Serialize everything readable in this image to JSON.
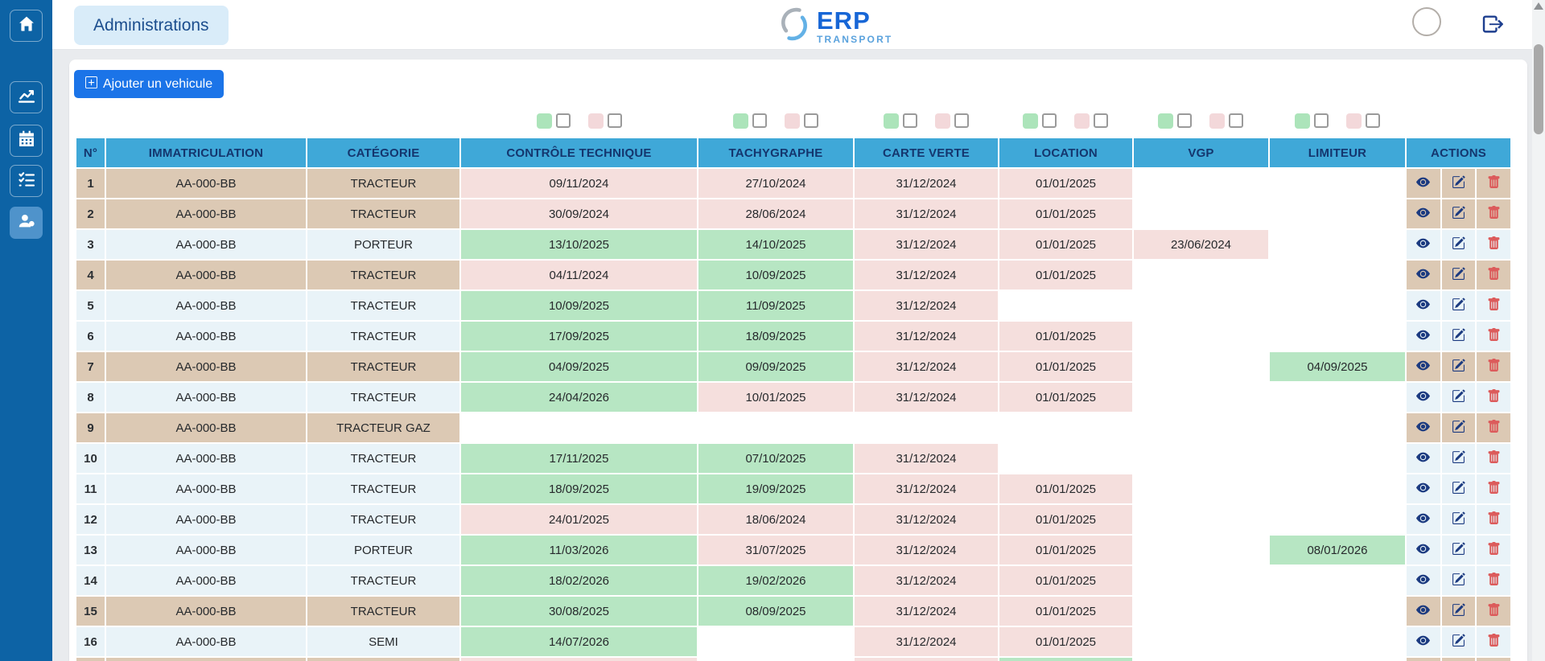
{
  "header": {
    "nav": "Administrations",
    "logo_main": "ERP",
    "logo_sub": "TRANSPORT"
  },
  "toolbar": {
    "add_vehicle_label": "Ajouter un vehicule"
  },
  "sidebar": {
    "items": [
      {
        "icon": "home-icon",
        "active": false
      },
      {
        "icon": "chart-line-icon",
        "active": false
      },
      {
        "icon": "calendar-icon",
        "active": false
      },
      {
        "icon": "checklist-icon",
        "active": false
      },
      {
        "icon": "users-icon",
        "active": true
      }
    ]
  },
  "legend": {
    "columns": [
      "CONTRÔLE TECHNIQUE",
      "TACHYGRAPHE",
      "CARTE VERTE",
      "LOCATION",
      "VGP",
      "LIMITEUR"
    ],
    "valid_color": "#ace4ba",
    "expired_color": "#f3d8da"
  },
  "colors": {
    "sidebar": "#0d63a5",
    "table_header": "#3fa8d8",
    "cell_ok": "#b7e6c3",
    "cell_expired": "#f5dfdd",
    "stripe_beige": "#dcc9b4",
    "stripe_blue": "#e9f3f8",
    "action_navy": "#1b3a80",
    "action_red": "#dc5b5b",
    "add_button_blue": "#1b74e8"
  },
  "table": {
    "headers": [
      "N°",
      "IMMATRICULATION",
      "CATÉGORIE",
      "CONTRÔLE TECHNIQUE",
      "TACHYGRAPHE",
      "CARTE VERTE",
      "LOCATION",
      "VGP",
      "LIMITEUR",
      "ACTIONS"
    ],
    "actions": [
      "view",
      "edit",
      "delete"
    ],
    "rows": [
      {
        "n": "1",
        "immatriculation": "AA-000-BB",
        "categorie": "TRACTEUR",
        "stripe": "beige",
        "ct": {
          "value": "09/11/2024",
          "status": "expired"
        },
        "tachy": {
          "value": "27/10/2024",
          "status": "expired"
        },
        "cv": {
          "value": "31/12/2024",
          "status": "expired"
        },
        "loc": {
          "value": "01/01/2025",
          "status": "expired"
        },
        "vgp": {
          "value": "",
          "status": "none"
        },
        "lim": {
          "value": "",
          "status": "none"
        }
      },
      {
        "n": "2",
        "immatriculation": "AA-000-BB",
        "categorie": "TRACTEUR",
        "stripe": "beige",
        "ct": {
          "value": "30/09/2024",
          "status": "expired"
        },
        "tachy": {
          "value": "28/06/2024",
          "status": "expired"
        },
        "cv": {
          "value": "31/12/2024",
          "status": "expired"
        },
        "loc": {
          "value": "01/01/2025",
          "status": "expired"
        },
        "vgp": {
          "value": "",
          "status": "none"
        },
        "lim": {
          "value": "",
          "status": "none"
        }
      },
      {
        "n": "3",
        "immatriculation": "AA-000-BB",
        "categorie": "PORTEUR",
        "stripe": "blue",
        "ct": {
          "value": "13/10/2025",
          "status": "ok"
        },
        "tachy": {
          "value": "14/10/2025",
          "status": "ok"
        },
        "cv": {
          "value": "31/12/2024",
          "status": "expired"
        },
        "loc": {
          "value": "01/01/2025",
          "status": "expired"
        },
        "vgp": {
          "value": "23/06/2024",
          "status": "expired"
        },
        "lim": {
          "value": "",
          "status": "none"
        }
      },
      {
        "n": "4",
        "immatriculation": "AA-000-BB",
        "categorie": "TRACTEUR",
        "stripe": "beige",
        "ct": {
          "value": "04/11/2024",
          "status": "expired"
        },
        "tachy": {
          "value": "10/09/2025",
          "status": "ok"
        },
        "cv": {
          "value": "31/12/2024",
          "status": "expired"
        },
        "loc": {
          "value": "01/01/2025",
          "status": "expired"
        },
        "vgp": {
          "value": "",
          "status": "none"
        },
        "lim": {
          "value": "",
          "status": "none"
        }
      },
      {
        "n": "5",
        "immatriculation": "AA-000-BB",
        "categorie": "TRACTEUR",
        "stripe": "blue",
        "ct": {
          "value": "10/09/2025",
          "status": "ok"
        },
        "tachy": {
          "value": "11/09/2025",
          "status": "ok"
        },
        "cv": {
          "value": "31/12/2024",
          "status": "expired"
        },
        "loc": {
          "value": "",
          "status": "none"
        },
        "vgp": {
          "value": "",
          "status": "none"
        },
        "lim": {
          "value": "",
          "status": "none"
        }
      },
      {
        "n": "6",
        "immatriculation": "AA-000-BB",
        "categorie": "TRACTEUR",
        "stripe": "blue",
        "ct": {
          "value": "17/09/2025",
          "status": "ok"
        },
        "tachy": {
          "value": "18/09/2025",
          "status": "ok"
        },
        "cv": {
          "value": "31/12/2024",
          "status": "expired"
        },
        "loc": {
          "value": "01/01/2025",
          "status": "expired"
        },
        "vgp": {
          "value": "",
          "status": "none"
        },
        "lim": {
          "value": "",
          "status": "none"
        }
      },
      {
        "n": "7",
        "immatriculation": "AA-000-BB",
        "categorie": "TRACTEUR",
        "stripe": "beige",
        "ct": {
          "value": "04/09/2025",
          "status": "ok"
        },
        "tachy": {
          "value": "09/09/2025",
          "status": "ok"
        },
        "cv": {
          "value": "31/12/2024",
          "status": "expired"
        },
        "loc": {
          "value": "01/01/2025",
          "status": "expired"
        },
        "vgp": {
          "value": "",
          "status": "none"
        },
        "lim": {
          "value": "04/09/2025",
          "status": "ok"
        }
      },
      {
        "n": "8",
        "immatriculation": "AA-000-BB",
        "categorie": "TRACTEUR",
        "stripe": "blue",
        "ct": {
          "value": "24/04/2026",
          "status": "ok"
        },
        "tachy": {
          "value": "10/01/2025",
          "status": "expired"
        },
        "cv": {
          "value": "31/12/2024",
          "status": "expired"
        },
        "loc": {
          "value": "01/01/2025",
          "status": "expired"
        },
        "vgp": {
          "value": "",
          "status": "none"
        },
        "lim": {
          "value": "",
          "status": "none"
        }
      },
      {
        "n": "9",
        "immatriculation": "AA-000-BB",
        "categorie": "TRACTEUR GAZ",
        "stripe": "beige",
        "ct": {
          "value": "",
          "status": "none"
        },
        "tachy": {
          "value": "",
          "status": "none"
        },
        "cv": {
          "value": "",
          "status": "none"
        },
        "loc": {
          "value": "",
          "status": "none"
        },
        "vgp": {
          "value": "",
          "status": "none"
        },
        "lim": {
          "value": "",
          "status": "none"
        }
      },
      {
        "n": "10",
        "immatriculation": "AA-000-BB",
        "categorie": "TRACTEUR",
        "stripe": "blue",
        "ct": {
          "value": "17/11/2025",
          "status": "ok"
        },
        "tachy": {
          "value": "07/10/2025",
          "status": "ok"
        },
        "cv": {
          "value": "31/12/2024",
          "status": "expired"
        },
        "loc": {
          "value": "",
          "status": "none"
        },
        "vgp": {
          "value": "",
          "status": "none"
        },
        "lim": {
          "value": "",
          "status": "none"
        }
      },
      {
        "n": "11",
        "immatriculation": "AA-000-BB",
        "categorie": "TRACTEUR",
        "stripe": "blue",
        "ct": {
          "value": "18/09/2025",
          "status": "ok"
        },
        "tachy": {
          "value": "19/09/2025",
          "status": "ok"
        },
        "cv": {
          "value": "31/12/2024",
          "status": "expired"
        },
        "loc": {
          "value": "01/01/2025",
          "status": "expired"
        },
        "vgp": {
          "value": "",
          "status": "none"
        },
        "lim": {
          "value": "",
          "status": "none"
        }
      },
      {
        "n": "12",
        "immatriculation": "AA-000-BB",
        "categorie": "TRACTEUR",
        "stripe": "blue",
        "ct": {
          "value": "24/01/2025",
          "status": "expired"
        },
        "tachy": {
          "value": "18/06/2024",
          "status": "expired"
        },
        "cv": {
          "value": "31/12/2024",
          "status": "expired"
        },
        "loc": {
          "value": "01/01/2025",
          "status": "expired"
        },
        "vgp": {
          "value": "",
          "status": "none"
        },
        "lim": {
          "value": "",
          "status": "none"
        }
      },
      {
        "n": "13",
        "immatriculation": "AA-000-BB",
        "categorie": "PORTEUR",
        "stripe": "blue",
        "ct": {
          "value": "11/03/2026",
          "status": "ok"
        },
        "tachy": {
          "value": "31/07/2025",
          "status": "expired"
        },
        "cv": {
          "value": "31/12/2024",
          "status": "expired"
        },
        "loc": {
          "value": "01/01/2025",
          "status": "expired"
        },
        "vgp": {
          "value": "",
          "status": "none"
        },
        "lim": {
          "value": "08/01/2026",
          "status": "ok"
        }
      },
      {
        "n": "14",
        "immatriculation": "AA-000-BB",
        "categorie": "TRACTEUR",
        "stripe": "blue",
        "ct": {
          "value": "18/02/2026",
          "status": "ok"
        },
        "tachy": {
          "value": "19/02/2026",
          "status": "ok"
        },
        "cv": {
          "value": "31/12/2024",
          "status": "expired"
        },
        "loc": {
          "value": "01/01/2025",
          "status": "expired"
        },
        "vgp": {
          "value": "",
          "status": "none"
        },
        "lim": {
          "value": "",
          "status": "none"
        }
      },
      {
        "n": "15",
        "immatriculation": "AA-000-BB",
        "categorie": "TRACTEUR",
        "stripe": "beige",
        "ct": {
          "value": "30/08/2025",
          "status": "ok"
        },
        "tachy": {
          "value": "08/09/2025",
          "status": "ok"
        },
        "cv": {
          "value": "31/12/2024",
          "status": "expired"
        },
        "loc": {
          "value": "01/01/2025",
          "status": "expired"
        },
        "vgp": {
          "value": "",
          "status": "none"
        },
        "lim": {
          "value": "",
          "status": "none"
        }
      },
      {
        "n": "16",
        "immatriculation": "AA-000-BB",
        "categorie": "SEMI",
        "stripe": "blue",
        "ct": {
          "value": "14/07/2026",
          "status": "ok"
        },
        "tachy": {
          "value": "",
          "status": "none"
        },
        "cv": {
          "value": "31/12/2024",
          "status": "expired"
        },
        "loc": {
          "value": "01/01/2025",
          "status": "expired"
        },
        "vgp": {
          "value": "",
          "status": "none"
        },
        "lim": {
          "value": "",
          "status": "none"
        }
      },
      {
        "n": "",
        "immatriculation": "",
        "categorie": "",
        "stripe": "beige",
        "ct": {
          "value": "",
          "status": "expired"
        },
        "tachy": {
          "value": "",
          "status": "none"
        },
        "cv": {
          "value": "",
          "status": "expired"
        },
        "loc": {
          "value": "",
          "status": "ok"
        },
        "vgp": {
          "value": "",
          "status": "none"
        },
        "lim": {
          "value": "",
          "status": "none"
        }
      }
    ]
  }
}
